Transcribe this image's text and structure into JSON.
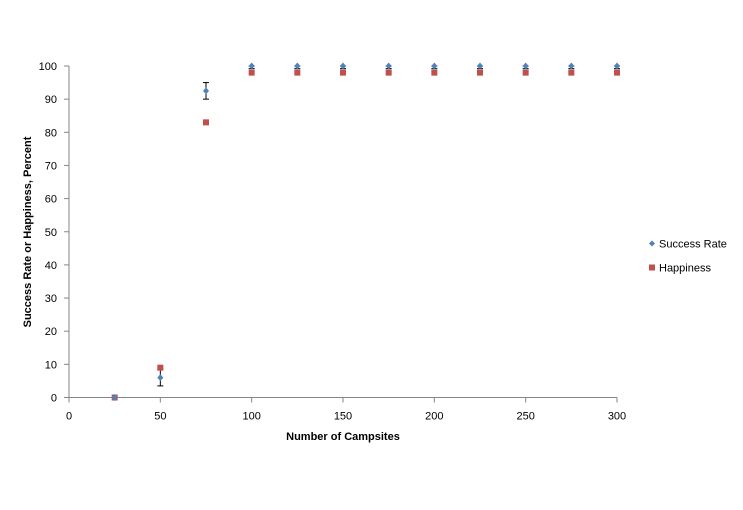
{
  "chart_data": {
    "type": "scatter",
    "xlabel": "Number of Campsites",
    "ylabel": "Success Rate or Happiness,  Percent",
    "xlim": [
      0,
      300
    ],
    "ylim": [
      0,
      100
    ],
    "xticks": [
      0,
      50,
      100,
      150,
      200,
      250,
      300
    ],
    "yticks": [
      0,
      10,
      20,
      30,
      40,
      50,
      60,
      70,
      80,
      90,
      100
    ],
    "grid": false,
    "legend_position": "right",
    "series": [
      {
        "name": "Success Rate",
        "color": "#4F81BD",
        "marker": "diamond",
        "x": [
          25,
          50,
          75,
          100,
          125,
          150,
          175,
          200,
          225,
          250,
          275,
          300
        ],
        "y": [
          0,
          6,
          92.5,
          100,
          100,
          100,
          100,
          100,
          100,
          100,
          100,
          100
        ],
        "error": [
          0,
          2.5,
          2.5,
          0.8,
          0.8,
          0.8,
          0.8,
          0.8,
          0.8,
          0.8,
          0.8,
          0.8
        ]
      },
      {
        "name": "Happiness",
        "color": "#C0504D",
        "marker": "square",
        "x": [
          25,
          50,
          75,
          100,
          125,
          150,
          175,
          200,
          225,
          250,
          275,
          300
        ],
        "y": [
          0,
          9,
          83,
          98,
          98,
          98,
          98,
          98,
          98,
          98,
          98,
          98
        ]
      }
    ]
  }
}
